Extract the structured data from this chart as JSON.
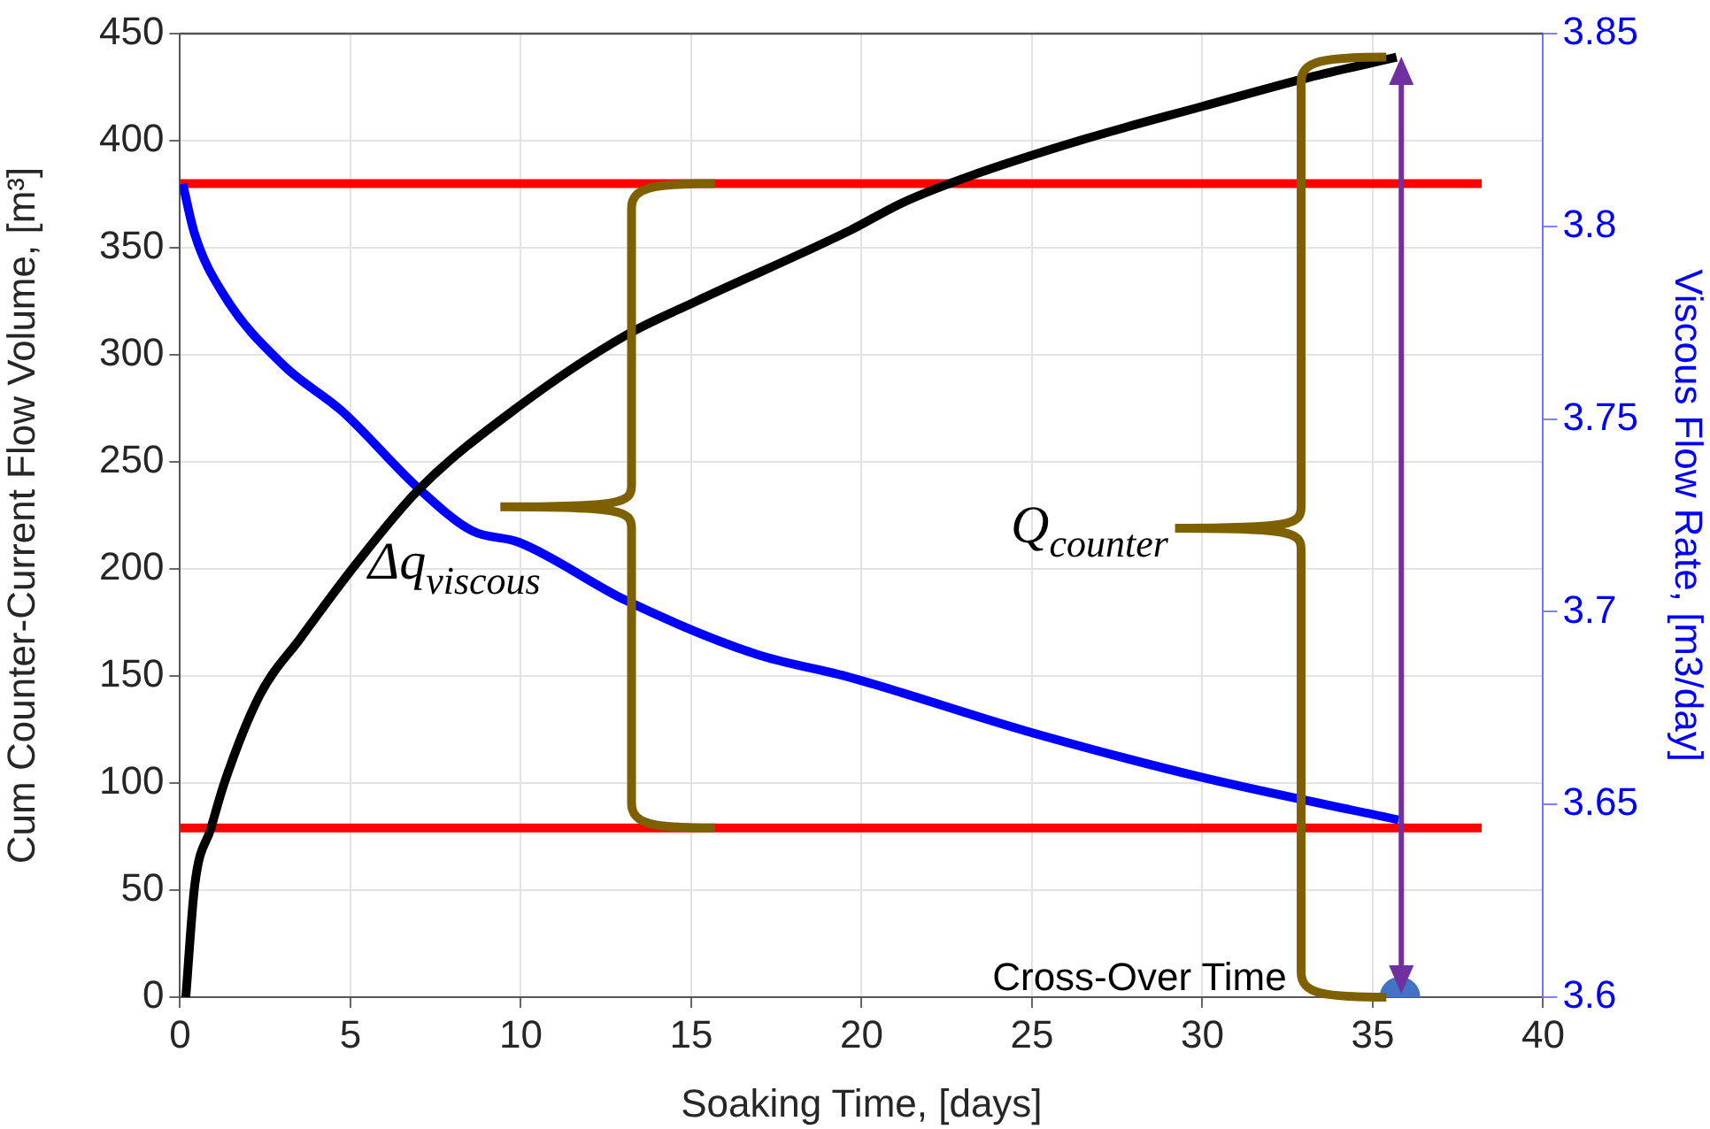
{
  "chart_data": {
    "type": "line",
    "xlabel": "Soaking Time, [days]",
    "ylabel": "Cum Counter-Current Flow Volume, [m³]",
    "y2label": "Viscous Flow Rate, [m3/day]",
    "xlim": [
      0,
      40
    ],
    "xticks": [
      0,
      5,
      10,
      15,
      20,
      25,
      30,
      35,
      40
    ],
    "ylim": [
      0,
      450
    ],
    "yticks": [
      0,
      50,
      100,
      150,
      200,
      250,
      300,
      350,
      400,
      450
    ],
    "y2lim": [
      3.6,
      3.85
    ],
    "y2ticks": [
      3.6,
      3.65,
      3.7,
      3.75,
      3.8,
      3.85
    ],
    "grid": true,
    "series": [
      {
        "type": "line",
        "color": "#000000",
        "x": [
          0.17,
          0.43,
          0.91,
          1.3,
          2.34,
          3.55,
          5.1,
          7.0,
          9.95,
          13.07,
          15.15,
          19.65,
          21.2,
          23.1,
          26.6,
          30.0,
          33.0,
          35.7
        ],
        "values": [
          0,
          52,
          79,
          100,
          141,
          168,
          201,
          237,
          276,
          309,
          325,
          358,
          371,
          383,
          401,
          416,
          429,
          439
        ]
      },
      {
        "type": "line",
        "color": "#0000ff",
        "axis": "y2",
        "x": [
          0.08,
          0.43,
          1.3,
          3.03,
          4.76,
          7.0,
          8.57,
          9.95,
          13.07,
          16.9,
          19.65,
          24.85,
          30.0,
          35.76
        ],
        "values": [
          3.811,
          3.798,
          3.782,
          3.764,
          3.752,
          3.732,
          3.721,
          3.718,
          3.703,
          3.689,
          3.683,
          3.669,
          3.657,
          3.646
        ]
      },
      {
        "type": "line",
        "color": "#ff0000",
        "x": [
          0,
          38.2
        ],
        "values": [
          380,
          380
        ]
      },
      {
        "type": "line",
        "color": "#ff0000",
        "x": [
          0,
          38.2
        ],
        "values": [
          79,
          79
        ]
      },
      {
        "type": "scatter",
        "color": "#4472c4",
        "marker": "circle",
        "x": [
          35.8
        ],
        "values": [
          0
        ]
      }
    ],
    "ref_lines": [
      {
        "axis": "x",
        "value": 35.84,
        "color": "#7030a0"
      }
    ],
    "annotations": [
      "Δq$_{viscous}$",
      {
        "text": "Q$_{counter}$",
        "x": 35.7,
        "y": 439
      },
      {
        "text": "Cross-Over Time",
        "x": 35.8,
        "y": 0
      }
    ]
  }
}
